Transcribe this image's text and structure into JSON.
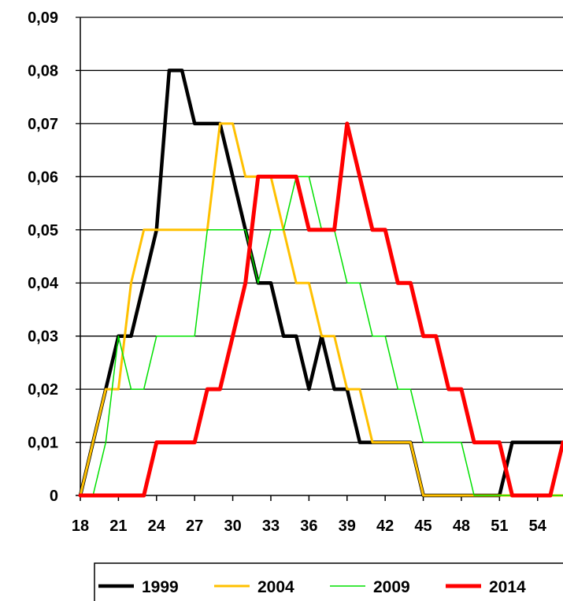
{
  "chart_data": {
    "type": "line",
    "title": "",
    "xlabel": "",
    "ylabel": "",
    "ylim": [
      0,
      0.09
    ],
    "xlim": [
      18,
      56
    ],
    "grid": "horizontal",
    "legend_position": "bottom",
    "y_ticks": [
      "0",
      "0,01",
      "0,02",
      "0,03",
      "0,04",
      "0,05",
      "0,06",
      "0,07",
      "0,08",
      "0,09"
    ],
    "x_ticks": [
      "18",
      "21",
      "24",
      "27",
      "30",
      "33",
      "36",
      "39",
      "42",
      "45",
      "48",
      "51",
      "54"
    ],
    "x": [
      18,
      19,
      20,
      21,
      22,
      23,
      24,
      25,
      26,
      27,
      28,
      29,
      30,
      31,
      32,
      33,
      34,
      35,
      36,
      37,
      38,
      39,
      40,
      41,
      42,
      43,
      44,
      45,
      46,
      47,
      48,
      49,
      50,
      51,
      52,
      53,
      54,
      55,
      56
    ],
    "series": [
      {
        "name": "1999",
        "color": "#000000",
        "values": [
          0,
          0.01,
          0.02,
          0.03,
          0.03,
          0.04,
          0.05,
          0.08,
          0.08,
          0.07,
          0.07,
          0.07,
          0.06,
          0.05,
          0.04,
          0.04,
          0.03,
          0.03,
          0.02,
          0.03,
          0.02,
          0.02,
          0.01,
          0.01,
          0.01,
          0.01,
          0.01,
          0,
          0,
          0,
          0,
          0,
          0,
          0,
          0.01,
          0.01,
          0.01,
          0.01,
          0.01
        ]
      },
      {
        "name": "2004",
        "color": "#FFC000",
        "values": [
          0,
          0.01,
          0.02,
          0.02,
          0.04,
          0.05,
          0.05,
          0.05,
          0.05,
          0.05,
          0.05,
          0.07,
          0.07,
          0.06,
          0.06,
          0.06,
          0.05,
          0.04,
          0.04,
          0.03,
          0.03,
          0.02,
          0.02,
          0.01,
          0.01,
          0.01,
          0.01,
          0,
          0,
          0,
          0,
          0,
          0,
          0,
          0,
          0,
          0,
          0,
          0
        ]
      },
      {
        "name": "2009",
        "color": "#00E000",
        "values": [
          0,
          0,
          0.01,
          0.03,
          0.02,
          0.02,
          0.03,
          0.03,
          0.03,
          0.03,
          0.05,
          0.05,
          0.05,
          0.05,
          0.04,
          0.05,
          0.05,
          0.06,
          0.06,
          0.05,
          0.05,
          0.04,
          0.04,
          0.03,
          0.03,
          0.02,
          0.02,
          0.01,
          0.01,
          0.01,
          0.01,
          0,
          0,
          0,
          0,
          0,
          0,
          0,
          0
        ]
      },
      {
        "name": "2014",
        "color": "#FF0000",
        "values": [
          0,
          0,
          0,
          0,
          0,
          0,
          0.01,
          0.01,
          0.01,
          0.01,
          0.02,
          0.02,
          0.03,
          0.04,
          0.06,
          0.06,
          0.06,
          0.06,
          0.05,
          0.05,
          0.05,
          0.07,
          0.06,
          0.05,
          0.05,
          0.04,
          0.04,
          0.03,
          0.03,
          0.02,
          0.02,
          0.01,
          0.01,
          0.01,
          0,
          0,
          0,
          0,
          0.01
        ]
      }
    ]
  }
}
